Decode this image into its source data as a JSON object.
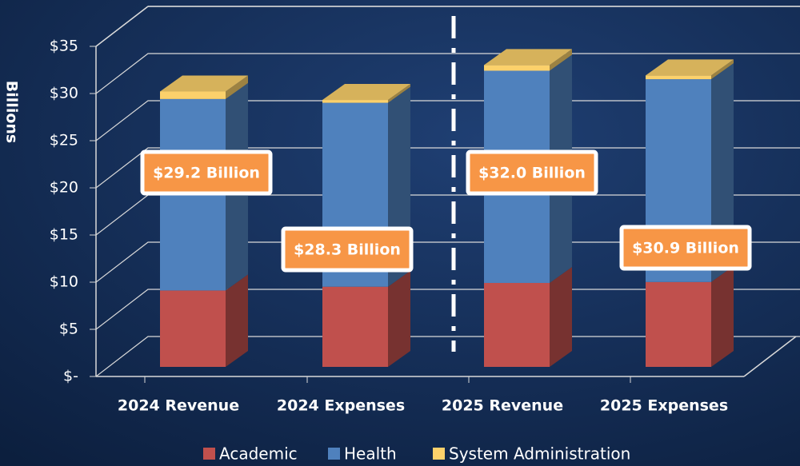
{
  "chart_data": {
    "type": "bar3d-stacked",
    "y_axis_label": "Billions",
    "categories": [
      "2024 Revenue",
      "2024 Expenses",
      "2025 Revenue",
      "2025 Expenses"
    ],
    "series": [
      {
        "name": "Academic",
        "color": "#c0504d",
        "values": [
          8.1,
          8.5,
          8.9,
          9.0
        ]
      },
      {
        "name": "Health",
        "color": "#4f81bd",
        "values": [
          20.3,
          19.5,
          22.5,
          21.5
        ]
      },
      {
        "name": "System Administration",
        "color": "#fcd16b",
        "values": [
          0.8,
          0.3,
          0.6,
          0.4
        ]
      }
    ],
    "annotations": [
      "$29.2 Billion",
      "$28.3 Billion",
      "$32.0 Billion",
      "$30.9 Billion"
    ],
    "ylim": [
      0,
      35
    ],
    "yticks": [
      {
        "value": 0,
        "label": "$-"
      },
      {
        "value": 5,
        "label": "$5"
      },
      {
        "value": 10,
        "label": "$10"
      },
      {
        "value": 15,
        "label": "$15"
      },
      {
        "value": 20,
        "label": "$20"
      },
      {
        "value": 25,
        "label": "$25"
      },
      {
        "value": 30,
        "label": "$30"
      },
      {
        "value": 35,
        "label": "$35"
      }
    ],
    "grid": true,
    "legend": "bottom"
  }
}
